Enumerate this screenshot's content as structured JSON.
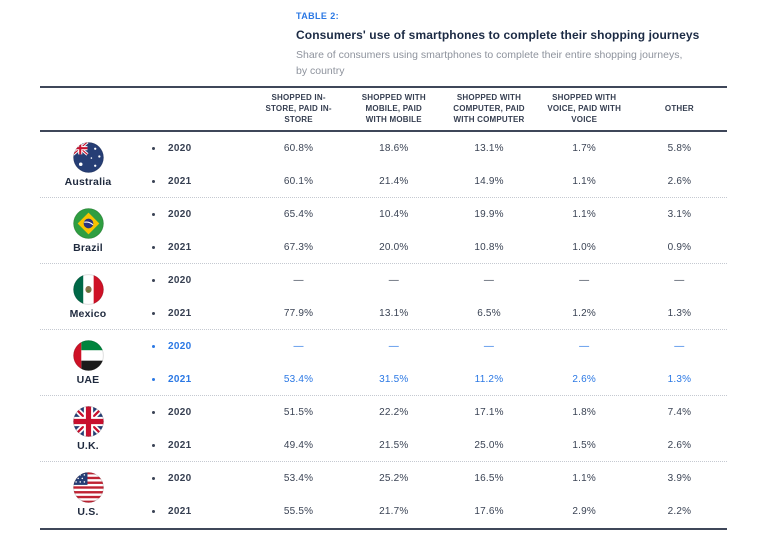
{
  "header": {
    "table_label": "TABLE 2:",
    "title": "Consumers' use of smartphones to complete their shopping journeys",
    "subtitle": "Share of consumers using smartphones to complete their entire shopping journeys, by country"
  },
  "colors": {
    "accent_blue": "#2b78e4",
    "dark_navy": "#363f51",
    "subtitle_gray": "#8e939d",
    "rule_color": "#3f4759"
  },
  "table": {
    "columns": [
      "SHOPPED IN-STORE, PAID IN-STORE",
      "SHOPPED WITH MOBILE, PAID WITH MOBILE",
      "SHOPPED WITH COMPUTER, PAID WITH COMPUTER",
      "SHOPPED WITH VOICE, PAID WITH VOICE",
      "OTHER"
    ],
    "rows": [
      {
        "country": "Australia",
        "flag": "australia-flag-icon",
        "highlight": false,
        "years": [
          {
            "label": "2020",
            "values": [
              "60.8%",
              "18.6%",
              "13.1%",
              "1.7%",
              "5.8%"
            ]
          },
          {
            "label": "2021",
            "values": [
              "60.1%",
              "21.4%",
              "14.9%",
              "1.1%",
              "2.6%"
            ]
          }
        ]
      },
      {
        "country": "Brazil",
        "flag": "brazil-flag-icon",
        "highlight": false,
        "years": [
          {
            "label": "2020",
            "values": [
              "65.4%",
              "10.4%",
              "19.9%",
              "1.1%",
              "3.1%"
            ]
          },
          {
            "label": "2021",
            "values": [
              "67.3%",
              "20.0%",
              "10.8%",
              "1.0%",
              "0.9%"
            ]
          }
        ]
      },
      {
        "country": "Mexico",
        "flag": "mexico-flag-icon",
        "highlight": false,
        "years": [
          {
            "label": "2020",
            "values": [
              "—",
              "—",
              "—",
              "—",
              "—"
            ]
          },
          {
            "label": "2021",
            "values": [
              "77.9%",
              "13.1%",
              "6.5%",
              "1.2%",
              "1.3%"
            ]
          }
        ]
      },
      {
        "country": "UAE",
        "flag": "uae-flag-icon",
        "highlight": true,
        "years": [
          {
            "label": "2020",
            "values": [
              "—",
              "—",
              "—",
              "—",
              "—"
            ]
          },
          {
            "label": "2021",
            "values": [
              "53.4%",
              "31.5%",
              "11.2%",
              "2.6%",
              "1.3%"
            ]
          }
        ]
      },
      {
        "country": "U.K.",
        "flag": "uk-flag-icon",
        "highlight": false,
        "years": [
          {
            "label": "2020",
            "values": [
              "51.5%",
              "22.2%",
              "17.1%",
              "1.8%",
              "7.4%"
            ]
          },
          {
            "label": "2021",
            "values": [
              "49.4%",
              "21.5%",
              "25.0%",
              "1.5%",
              "2.6%"
            ]
          }
        ]
      },
      {
        "country": "U.S.",
        "flag": "us-flag-icon",
        "highlight": false,
        "years": [
          {
            "label": "2020",
            "values": [
              "53.4%",
              "25.2%",
              "16.5%",
              "1.1%",
              "3.9%"
            ]
          },
          {
            "label": "2021",
            "values": [
              "55.5%",
              "21.7%",
              "17.6%",
              "2.9%",
              "2.2%"
            ]
          }
        ]
      }
    ]
  }
}
